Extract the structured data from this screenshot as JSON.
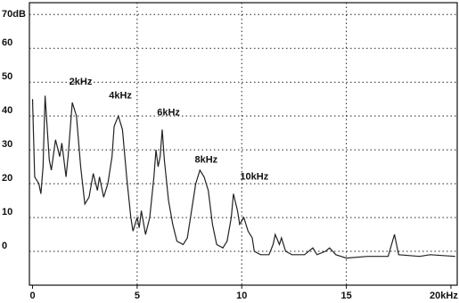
{
  "chart_data": {
    "type": "line",
    "x": [
      0,
      0.1,
      0.3,
      0.4,
      0.5,
      0.6,
      0.8,
      0.9,
      1.1,
      1.3,
      1.4,
      1.6,
      1.7,
      1.9,
      2.1,
      2.3,
      2.5,
      2.7,
      2.9,
      3.1,
      3.2,
      3.4,
      3.6,
      3.8,
      3.9,
      4.1,
      4.3,
      4.5,
      4.7,
      4.8,
      5.0,
      5.1,
      5.2,
      5.4,
      5.6,
      5.8,
      5.9,
      6.0,
      6.1,
      6.2,
      6.3,
      6.5,
      6.7,
      6.9,
      7.2,
      7.4,
      7.6,
      7.8,
      8.0,
      8.2,
      8.4,
      8.6,
      8.8,
      9.1,
      9.3,
      9.5,
      9.6,
      9.8,
      9.9,
      10.1,
      10.3,
      10.5,
      10.6,
      10.9,
      11.3,
      11.5,
      11.6,
      11.8,
      11.9,
      12.1,
      12.4,
      13.0,
      13.4,
      13.6,
      14.0,
      14.2,
      14.5,
      15.0,
      16.0,
      17.0,
      17.3,
      17.5,
      18.5,
      19.0,
      20.2
    ],
    "values": [
      45,
      22,
      20,
      17,
      25,
      46,
      27,
      24,
      33,
      28,
      32,
      22,
      28,
      44,
      40,
      25,
      14,
      16,
      23,
      18,
      22,
      16,
      20,
      28,
      37,
      40,
      36,
      22,
      10,
      6,
      10,
      7,
      12,
      5,
      10,
      22,
      30,
      25,
      28,
      36,
      27,
      15,
      8,
      3,
      2,
      4,
      12,
      20,
      24,
      22,
      18,
      8,
      2,
      1,
      3,
      10,
      17,
      12,
      8,
      10,
      6,
      4,
      0,
      -1,
      -1,
      2,
      5,
      2,
      4,
      0,
      -1,
      -1,
      1,
      -1,
      0,
      1,
      -1,
      -2,
      -1.5,
      -1.5,
      5,
      -1,
      -1.5,
      -1,
      -1.5
    ],
    "color": "#222222",
    "xlim": [
      -0.15,
      20.3
    ],
    "ylim": [
      -10,
      73.5
    ],
    "xticks": [
      0,
      5,
      10,
      15,
      {
        "value": 20,
        "label": "20kHz"
      }
    ],
    "yticks": [
      0,
      10,
      20,
      30,
      40,
      50,
      60,
      {
        "value": 70,
        "label": "70dB"
      }
    ],
    "grid": true,
    "annotations": [
      {
        "text": "2kHz",
        "x": 2.3,
        "y": 50
      },
      {
        "text": "4kHz",
        "x": 4.2,
        "y": 46
      },
      {
        "text": "6kHz",
        "x": 6.5,
        "y": 41
      },
      {
        "text": "8kHz",
        "x": 8.3,
        "y": 27
      },
      {
        "text": "10kHz",
        "x": 10.6,
        "y": 22
      }
    ]
  }
}
